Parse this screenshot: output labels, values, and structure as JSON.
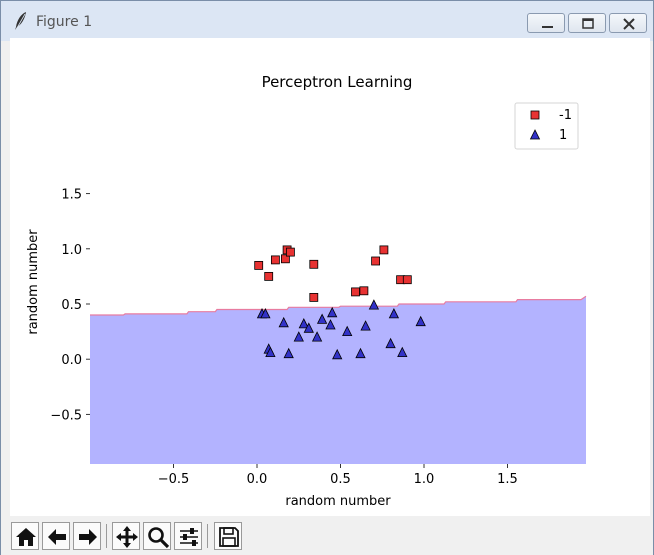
{
  "window": {
    "title": "Figure 1",
    "icon": "feather-icon",
    "controls": [
      "minimize-icon",
      "maximize-icon",
      "close-icon"
    ]
  },
  "toolbar": {
    "buttons": [
      {
        "name": "home-button",
        "icon": "home-icon"
      },
      {
        "name": "back-button",
        "icon": "arrow-left-icon"
      },
      {
        "name": "forward-button",
        "icon": "arrow-right-icon"
      },
      {
        "name": "pan-button",
        "icon": "move-icon"
      },
      {
        "name": "zoom-button",
        "icon": "magnifier-icon"
      },
      {
        "name": "configure-subplots-button",
        "icon": "sliders-icon"
      },
      {
        "name": "save-button",
        "icon": "floppy-icon"
      }
    ]
  },
  "chart_data": {
    "type": "scatter",
    "title": "Perceptron Learning",
    "xlabel": "random number",
    "ylabel": "random number",
    "xlim": [
      -1.0,
      1.97
    ],
    "ylim": [
      -0.95,
      1.95
    ],
    "xticks": [
      -0.5,
      0.0,
      0.5,
      1.0,
      1.5
    ],
    "xtick_labels": [
      "−0.5",
      "0.0",
      "0.5",
      "1.0",
      "1.5"
    ],
    "yticks": [
      -0.5,
      0.0,
      0.5,
      1.0,
      1.5
    ],
    "ytick_labels": [
      "−0.5",
      "0.0",
      "0.5",
      "1.0",
      "1.5"
    ],
    "grid": false,
    "legend_position": "top-right",
    "series": [
      {
        "name": "-1",
        "marker": "square",
        "color": "#e83232",
        "points": [
          [
            0.01,
            0.85
          ],
          [
            0.07,
            0.75
          ],
          [
            0.11,
            0.9
          ],
          [
            0.17,
            0.91
          ],
          [
            0.18,
            0.99
          ],
          [
            0.2,
            0.97
          ],
          [
            0.34,
            0.86
          ],
          [
            0.34,
            0.56
          ],
          [
            0.59,
            0.61
          ],
          [
            0.64,
            0.62
          ],
          [
            0.71,
            0.89
          ],
          [
            0.76,
            0.99
          ],
          [
            0.86,
            0.72
          ],
          [
            0.9,
            0.72
          ]
        ]
      },
      {
        "name": "1",
        "marker": "triangle",
        "color": "#3232c8",
        "points": [
          [
            0.03,
            0.41
          ],
          [
            0.05,
            0.41
          ],
          [
            0.07,
            0.09
          ],
          [
            0.08,
            0.06
          ],
          [
            0.16,
            0.33
          ],
          [
            0.19,
            0.05
          ],
          [
            0.25,
            0.2
          ],
          [
            0.28,
            0.32
          ],
          [
            0.31,
            0.28
          ],
          [
            0.36,
            0.2
          ],
          [
            0.39,
            0.36
          ],
          [
            0.44,
            0.31
          ],
          [
            0.45,
            0.42
          ],
          [
            0.48,
            0.04
          ],
          [
            0.54,
            0.25
          ],
          [
            0.62,
            0.05
          ],
          [
            0.65,
            0.3
          ],
          [
            0.7,
            0.49
          ],
          [
            0.8,
            0.14
          ],
          [
            0.82,
            0.41
          ],
          [
            0.87,
            0.06
          ],
          [
            0.98,
            0.34
          ]
        ]
      }
    ],
    "decision_regions": {
      "upper_class": "-1",
      "upper_color": "#ffffff",
      "lower_class": "1",
      "lower_color": "#b3b3ff",
      "boundary_color": "#e87ca0",
      "boundary": [
        [
          -1.0,
          0.4
        ],
        [
          -0.8,
          0.4
        ],
        [
          -0.79,
          0.41
        ],
        [
          -0.42,
          0.41
        ],
        [
          -0.41,
          0.43
        ],
        [
          -0.25,
          0.43
        ],
        [
          -0.24,
          0.45
        ],
        [
          0.18,
          0.45
        ],
        [
          0.19,
          0.47
        ],
        [
          0.49,
          0.47
        ],
        [
          0.5,
          0.48
        ],
        [
          0.84,
          0.48
        ],
        [
          0.85,
          0.5
        ],
        [
          1.12,
          0.5
        ],
        [
          1.13,
          0.52
        ],
        [
          1.55,
          0.52
        ],
        [
          1.56,
          0.54
        ],
        [
          1.94,
          0.54
        ],
        [
          1.97,
          0.57
        ]
      ]
    }
  }
}
